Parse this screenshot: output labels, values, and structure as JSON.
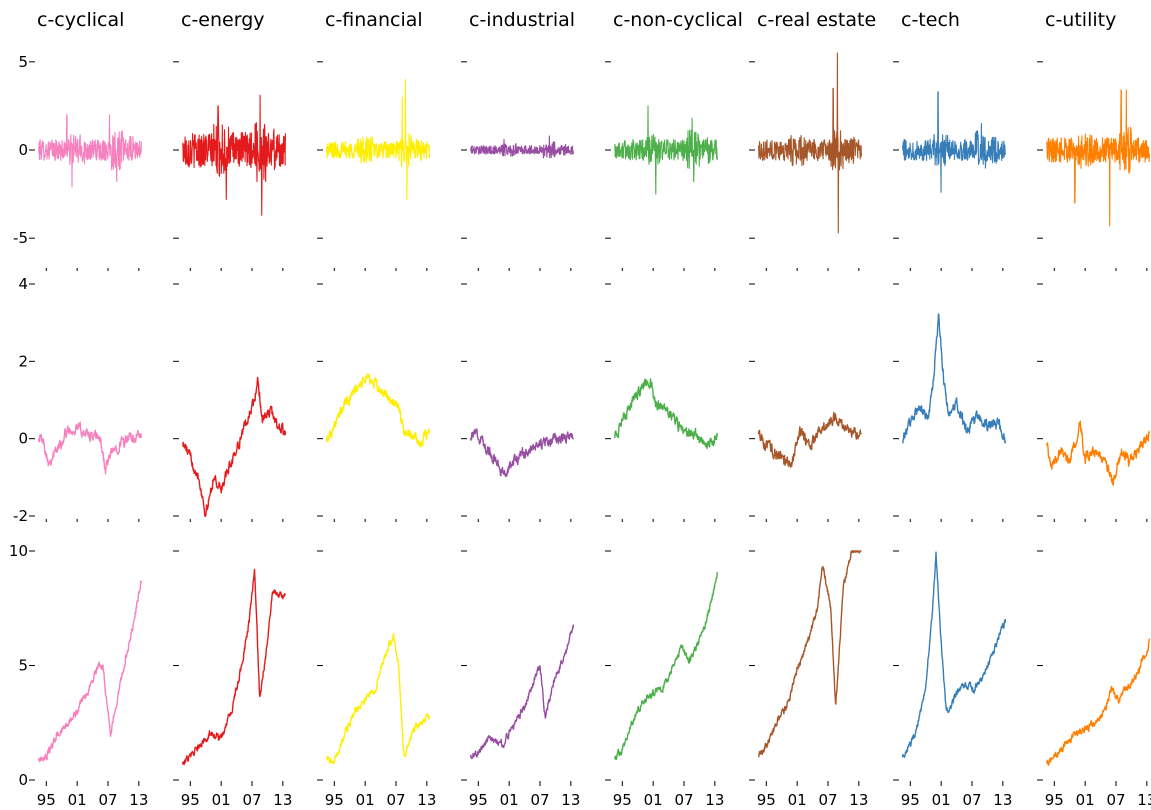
{
  "chart_data": {
    "type": "line",
    "layout": "small-multiples grid, 3 rows x 8 columns, shared axes per row",
    "columns": [
      {
        "name": "c-cyclical",
        "color": "#f781bf"
      },
      {
        "name": "c-energy",
        "color": "#e41a1c"
      },
      {
        "name": "c-financial",
        "color": "#ffee00"
      },
      {
        "name": "c-industrial",
        "color": "#984ea3"
      },
      {
        "name": "c-non-cyclical",
        "color": "#4daf4a"
      },
      {
        "name": "c-real estate",
        "color": "#a65628"
      },
      {
        "name": "c-tech",
        "color": "#377eb8"
      },
      {
        "name": "c-utility",
        "color": "#ff7f00"
      }
    ],
    "x_tick_labels": [
      "95",
      "01",
      "07",
      "13"
    ],
    "x_tick_years": [
      1995,
      2001,
      2007,
      2013
    ],
    "xlim": [
      1993,
      2014
    ],
    "rows": [
      {
        "ylim": [
          -5.5,
          5.5
        ],
        "yticks": [
          5,
          0,
          -5
        ],
        "ytick_labels": [
          "5",
          "0",
          "-5"
        ],
        "series_kind": "noise",
        "spikes": [
          [
            [
              2007.3,
              2.0
            ],
            [
              2008.7,
              -1.8
            ],
            [
              1999.0,
              2.0
            ],
            [
              2000.0,
              -2.1
            ]
          ],
          [
            [
              2000.4,
              2.5
            ],
            [
              2008.6,
              3.1
            ],
            [
              2008.9,
              -3.7
            ],
            [
              2002.0,
              -2.8
            ]
          ],
          [
            [
              2008.8,
              4.0
            ],
            [
              2009.1,
              -2.8
            ],
            [
              2008.2,
              3.0
            ]
          ],
          [
            [
              2008.8,
              0.8
            ],
            [
              2000.0,
              0.6
            ]
          ],
          [
            [
              2008.6,
              1.8
            ],
            [
              2000.0,
              2.5
            ],
            [
              2001.5,
              -2.5
            ],
            [
              2008.9,
              -1.8
            ]
          ],
          [
            [
              2008.8,
              5.5
            ],
            [
              2009.0,
              -4.7
            ],
            [
              2008.0,
              3.5
            ]
          ],
          [
            [
              2000.4,
              3.3
            ],
            [
              2001.0,
              -2.4
            ],
            [
              2008.8,
              1.5
            ]
          ],
          [
            [
              2008.0,
              3.4
            ],
            [
              2009.0,
              3.4
            ],
            [
              2005.8,
              -4.3
            ],
            [
              1999.0,
              -3.0
            ]
          ]
        ],
        "amplitudes": [
          0.6,
          1.0,
          0.5,
          0.25,
          0.6,
          0.6,
          0.6,
          0.7
        ]
      },
      {
        "ylim": [
          -2,
          4
        ],
        "yticks": [
          4,
          2,
          0,
          -2
        ],
        "ytick_labels": [
          "4",
          "2",
          "0",
          "-2"
        ],
        "series_kind": "walk",
        "anchors": [
          [
            [
              1993.5,
              0.1
            ],
            [
              1994.5,
              -0.1
            ],
            [
              1995.5,
              -0.6
            ],
            [
              1997.5,
              -0.2
            ],
            [
              1999.0,
              0.2
            ],
            [
              2001.0,
              0.3
            ],
            [
              2003.0,
              0.1
            ],
            [
              2005.5,
              0.0
            ],
            [
              2006.5,
              -0.8
            ],
            [
              2007.5,
              -0.4
            ],
            [
              2009.5,
              -0.1
            ],
            [
              2011.5,
              0.0
            ],
            [
              2013.5,
              0.1
            ]
          ],
          [
            [
              1993.5,
              -0.1
            ],
            [
              1995.0,
              -0.5
            ],
            [
              1996.5,
              -0.9
            ],
            [
              1997.5,
              -1.6
            ],
            [
              1998.0,
              -2.0
            ],
            [
              1999.5,
              -1.0
            ],
            [
              2001.0,
              -1.3
            ],
            [
              2003.0,
              -0.6
            ],
            [
              2005.0,
              0.1
            ],
            [
              2007.5,
              1.0
            ],
            [
              2008.2,
              1.5
            ],
            [
              2009.0,
              0.5
            ],
            [
              2010.5,
              0.7
            ],
            [
              2013.5,
              0.1
            ]
          ],
          [
            [
              1993.5,
              0.0
            ],
            [
              1995.0,
              0.3
            ],
            [
              1997.0,
              0.9
            ],
            [
              1999.5,
              1.3
            ],
            [
              2001.5,
              1.6
            ],
            [
              2003.5,
              1.3
            ],
            [
              2006.0,
              1.0
            ],
            [
              2007.5,
              0.8
            ],
            [
              2008.5,
              0.2
            ],
            [
              2010.0,
              0.1
            ],
            [
              2011.5,
              -0.1
            ],
            [
              2013.5,
              0.1
            ]
          ],
          [
            [
              1993.5,
              0.1
            ],
            [
              1995.0,
              0.1
            ],
            [
              1997.0,
              -0.3
            ],
            [
              1999.0,
              -0.7
            ],
            [
              2000.0,
              -0.9
            ],
            [
              2002.5,
              -0.5
            ],
            [
              2005.0,
              -0.3
            ],
            [
              2008.0,
              -0.1
            ],
            [
              2010.5,
              0.0
            ],
            [
              2013.5,
              0.1
            ]
          ],
          [
            [
              1993.5,
              0.1
            ],
            [
              1995.0,
              0.4
            ],
            [
              1997.0,
              1.0
            ],
            [
              1999.0,
              1.4
            ],
            [
              2000.5,
              1.5
            ],
            [
              2001.5,
              0.9
            ],
            [
              2003.5,
              0.8
            ],
            [
              2005.5,
              0.4
            ],
            [
              2007.0,
              0.2
            ],
            [
              2009.5,
              0.1
            ],
            [
              2011.5,
              -0.2
            ],
            [
              2013.5,
              0.0
            ]
          ],
          [
            [
              1993.5,
              0.2
            ],
            [
              1995.0,
              -0.2
            ],
            [
              1997.0,
              -0.4
            ],
            [
              1999.0,
              -0.6
            ],
            [
              2000.0,
              -0.6
            ],
            [
              2001.5,
              0.2
            ],
            [
              2003.5,
              -0.2
            ],
            [
              2005.0,
              0.2
            ],
            [
              2007.0,
              0.4
            ],
            [
              2008.5,
              0.6
            ],
            [
              2010.0,
              0.3
            ],
            [
              2011.5,
              0.2
            ],
            [
              2013.5,
              0.1
            ]
          ],
          [
            [
              1993.5,
              0.0
            ],
            [
              1995.0,
              0.4
            ],
            [
              1996.5,
              0.8
            ],
            [
              1998.5,
              0.5
            ],
            [
              1999.5,
              1.5
            ],
            [
              2000.5,
              3.2
            ],
            [
              2001.5,
              1.5
            ],
            [
              2002.5,
              0.6
            ],
            [
              2004.0,
              0.9
            ],
            [
              2006.0,
              0.2
            ],
            [
              2008.0,
              0.6
            ],
            [
              2010.0,
              0.3
            ],
            [
              2012.0,
              0.4
            ],
            [
              2013.5,
              0.0
            ]
          ],
          [
            [
              1993.5,
              -0.1
            ],
            [
              1994.5,
              -0.7
            ],
            [
              1996.5,
              -0.3
            ],
            [
              1998.0,
              -0.6
            ],
            [
              2000.0,
              0.4
            ],
            [
              2001.0,
              -0.5
            ],
            [
              2003.0,
              -0.3
            ],
            [
              2005.0,
              -0.7
            ],
            [
              2006.5,
              -1.1
            ],
            [
              2008.0,
              -0.3
            ],
            [
              2009.5,
              -0.6
            ],
            [
              2011.5,
              -0.2
            ],
            [
              2013.5,
              0.1
            ]
          ]
        ]
      },
      {
        "ylim": [
          0,
          10
        ],
        "yticks": [
          10,
          5,
          0
        ],
        "ytick_labels": [
          "10",
          "5",
          "0"
        ],
        "series_kind": "walk",
        "anchors": [
          [
            [
              1993.5,
              0.9
            ],
            [
              1995.0,
              1.0
            ],
            [
              1997.0,
              1.9
            ],
            [
              1999.0,
              2.4
            ],
            [
              2001.0,
              3.0
            ],
            [
              2003.0,
              3.8
            ],
            [
              2005.0,
              5.0
            ],
            [
              2006.0,
              5.0
            ],
            [
              2007.5,
              2.0
            ],
            [
              2009.0,
              3.8
            ],
            [
              2011.0,
              5.8
            ],
            [
              2013.5,
              8.7
            ]
          ],
          [
            [
              1993.5,
              0.8
            ],
            [
              1995.0,
              1.0
            ],
            [
              1997.0,
              1.5
            ],
            [
              1999.0,
              2.1
            ],
            [
              2001.0,
              1.8
            ],
            [
              2003.0,
              3.0
            ],
            [
              2005.0,
              5.0
            ],
            [
              2006.5,
              7.0
            ],
            [
              2007.5,
              9.2
            ],
            [
              2008.5,
              3.5
            ],
            [
              2010.0,
              6.0
            ],
            [
              2011.0,
              8.3
            ],
            [
              2013.5,
              8.0
            ]
          ],
          [
            [
              1993.5,
              0.9
            ],
            [
              1995.0,
              0.8
            ],
            [
              1997.0,
              2.0
            ],
            [
              1999.0,
              3.0
            ],
            [
              2001.0,
              3.5
            ],
            [
              2003.0,
              4.0
            ],
            [
              2005.0,
              5.5
            ],
            [
              2006.5,
              6.3
            ],
            [
              2007.5,
              5.0
            ],
            [
              2008.5,
              1.0
            ],
            [
              2010.0,
              2.0
            ],
            [
              2011.5,
              2.5
            ],
            [
              2013.5,
              2.8
            ]
          ],
          [
            [
              1993.5,
              1.0
            ],
            [
              1995.0,
              1.2
            ],
            [
              1997.0,
              1.8
            ],
            [
              1999.0,
              1.6
            ],
            [
              2000.0,
              1.6
            ],
            [
              2002.0,
              2.5
            ],
            [
              2004.0,
              3.2
            ],
            [
              2006.0,
              4.5
            ],
            [
              2007.0,
              5.0
            ],
            [
              2008.0,
              2.8
            ],
            [
              2010.0,
              4.5
            ],
            [
              2012.0,
              5.5
            ],
            [
              2013.5,
              6.8
            ]
          ],
          [
            [
              1993.5,
              1.0
            ],
            [
              1995.0,
              1.3
            ],
            [
              1997.0,
              2.5
            ],
            [
              1999.0,
              3.5
            ],
            [
              2001.0,
              3.8
            ],
            [
              2003.0,
              4.0
            ],
            [
              2005.0,
              5.0
            ],
            [
              2006.5,
              5.8
            ],
            [
              2008.0,
              5.2
            ],
            [
              2010.0,
              6.0
            ],
            [
              2012.0,
              7.5
            ],
            [
              2013.5,
              9.0
            ]
          ],
          [
            [
              1993.5,
              1.0
            ],
            [
              1995.0,
              1.5
            ],
            [
              1997.0,
              2.5
            ],
            [
              1999.0,
              3.2
            ],
            [
              2001.0,
              4.8
            ],
            [
              2003.0,
              6.0
            ],
            [
              2005.0,
              7.5
            ],
            [
              2006.0,
              9.5
            ],
            [
              2007.5,
              7.5
            ],
            [
              2008.5,
              3.2
            ],
            [
              2010.0,
              8.5
            ],
            [
              2011.5,
              10.0
            ],
            [
              2013.5,
              10.0
            ]
          ],
          [
            [
              1993.5,
              1.0
            ],
            [
              1995.0,
              1.5
            ],
            [
              1996.5,
              2.5
            ],
            [
              1998.0,
              4.0
            ],
            [
              1999.5,
              8.0
            ],
            [
              2000.0,
              10.0
            ],
            [
              2001.0,
              6.0
            ],
            [
              2002.0,
              3.0
            ],
            [
              2003.5,
              3.5
            ],
            [
              2005.0,
              4.2
            ],
            [
              2007.5,
              4.0
            ],
            [
              2009.0,
              4.5
            ],
            [
              2011.0,
              5.5
            ],
            [
              2013.5,
              7.0
            ]
          ],
          [
            [
              1993.5,
              0.8
            ],
            [
              1995.0,
              1.0
            ],
            [
              1997.0,
              1.5
            ],
            [
              1999.0,
              2.0
            ],
            [
              2001.0,
              2.2
            ],
            [
              2003.0,
              2.5
            ],
            [
              2005.0,
              3.0
            ],
            [
              2006.0,
              4.0
            ],
            [
              2007.5,
              3.5
            ],
            [
              2009.0,
              4.0
            ],
            [
              2011.0,
              4.5
            ],
            [
              2013.5,
              6.0
            ]
          ]
        ]
      }
    ]
  }
}
